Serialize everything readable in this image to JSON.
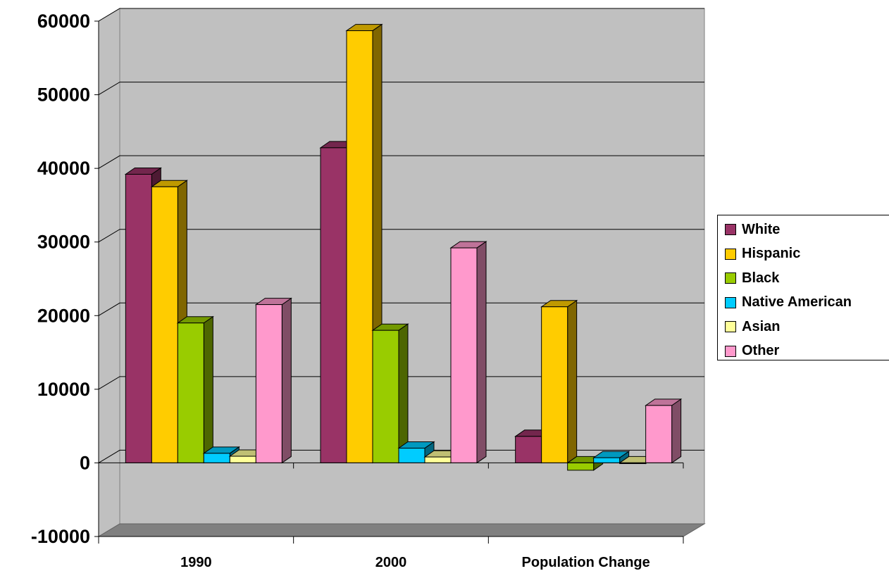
{
  "chart_data": {
    "type": "bar",
    "title": "",
    "xlabel": "",
    "ylabel": "",
    "categories": [
      "1990",
      "2000",
      "Population Change"
    ],
    "ylim": [
      -10000,
      60000
    ],
    "yticks": [
      "60000",
      "50000",
      "40000",
      "30000",
      "20000",
      "10000",
      "0",
      "-10000"
    ],
    "grid": true,
    "legend_position": "right",
    "series": [
      {
        "name": "White",
        "color": "#993366",
        "values": [
          39200,
          42800,
          3600
        ]
      },
      {
        "name": "Hispanic",
        "color": "#FFCC00",
        "values": [
          37500,
          58700,
          21200
        ]
      },
      {
        "name": "Black",
        "color": "#99CC00",
        "values": [
          19000,
          18000,
          -1000
        ]
      },
      {
        "name": "Native American",
        "color": "#00CCFF",
        "values": [
          1300,
          2000,
          700
        ]
      },
      {
        "name": "Asian",
        "color": "#FFFF99",
        "values": [
          900,
          800,
          -100
        ]
      },
      {
        "name": "Other",
        "color": "#FF99CC",
        "values": [
          21500,
          29200,
          7800
        ]
      }
    ]
  }
}
